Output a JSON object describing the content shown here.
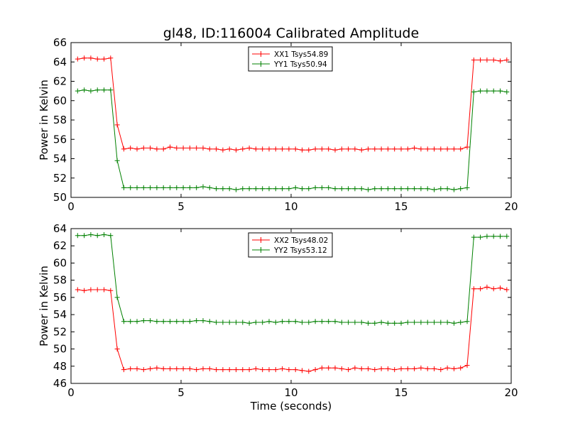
{
  "title": "gl48, ID:116004 Calibrated Amplitude",
  "chart_data": [
    {
      "type": "line",
      "title": "gl48, ID:116004 Calibrated Amplitude",
      "xlabel": "",
      "ylabel": "Power in Kelvin",
      "xlim": [
        0,
        20
      ],
      "ylim": [
        50,
        66
      ],
      "xticks": [
        0,
        5,
        10,
        15,
        20
      ],
      "yticks": [
        50,
        52,
        54,
        56,
        58,
        60,
        62,
        64,
        66
      ],
      "grid": false,
      "legend": "top-center",
      "x": [
        0.3,
        0.6,
        0.9,
        1.2,
        1.5,
        1.8,
        2.1,
        2.4,
        2.7,
        3.0,
        3.3,
        3.6,
        3.9,
        4.2,
        4.5,
        4.8,
        5.1,
        5.4,
        5.7,
        6.0,
        6.3,
        6.6,
        6.9,
        7.2,
        7.5,
        7.8,
        8.1,
        8.4,
        8.7,
        9.0,
        9.3,
        9.6,
        9.9,
        10.2,
        10.5,
        10.8,
        11.1,
        11.4,
        11.7,
        12.0,
        12.3,
        12.6,
        12.9,
        13.2,
        13.5,
        13.8,
        14.1,
        14.4,
        14.7,
        15.0,
        15.3,
        15.6,
        15.9,
        16.2,
        16.5,
        16.8,
        17.1,
        17.4,
        17.7,
        18.0,
        18.3,
        18.6,
        18.9,
        19.2,
        19.5,
        19.8
      ],
      "series": [
        {
          "name": "XX1 Tsys54.89",
          "color": "#ff0000",
          "values": [
            64.3,
            64.4,
            64.4,
            64.3,
            64.3,
            64.4,
            57.5,
            55.0,
            55.1,
            55.0,
            55.1,
            55.1,
            55.0,
            55.0,
            55.2,
            55.1,
            55.1,
            55.1,
            55.1,
            55.1,
            55.0,
            55.0,
            54.9,
            55.0,
            54.9,
            55.0,
            55.1,
            55.0,
            55.0,
            55.0,
            55.0,
            55.0,
            55.0,
            55.0,
            54.9,
            54.9,
            55.0,
            55.0,
            55.0,
            54.9,
            55.0,
            55.0,
            55.0,
            54.9,
            55.0,
            55.0,
            55.0,
            55.0,
            55.0,
            55.0,
            55.0,
            55.1,
            55.0,
            55.0,
            55.0,
            55.0,
            55.0,
            55.0,
            55.0,
            55.2,
            64.2,
            64.2,
            64.2,
            64.2,
            64.1,
            64.2
          ]
        },
        {
          "name": "YY1 Tsys50.94",
          "color": "#008000",
          "values": [
            61.0,
            61.1,
            61.0,
            61.1,
            61.1,
            61.1,
            53.8,
            51.0,
            51.0,
            51.0,
            51.0,
            51.0,
            51.0,
            51.0,
            51.0,
            51.0,
            51.0,
            51.0,
            51.0,
            51.1,
            51.0,
            50.9,
            50.9,
            50.9,
            50.8,
            50.9,
            50.9,
            50.9,
            50.9,
            50.9,
            50.9,
            50.9,
            50.9,
            51.0,
            50.9,
            50.9,
            51.0,
            51.0,
            51.0,
            50.9,
            50.9,
            50.9,
            50.9,
            50.9,
            50.8,
            50.9,
            50.9,
            50.9,
            50.9,
            50.9,
            50.9,
            50.9,
            50.9,
            50.9,
            50.8,
            50.9,
            50.9,
            50.8,
            50.9,
            51.0,
            60.9,
            61.0,
            61.0,
            61.0,
            61.0,
            60.9
          ]
        }
      ]
    },
    {
      "type": "line",
      "title": "",
      "xlabel": "Time (seconds)",
      "ylabel": "Power in Kelvin",
      "xlim": [
        0,
        20
      ],
      "ylim": [
        46,
        64
      ],
      "xticks": [
        0,
        5,
        10,
        15,
        20
      ],
      "yticks": [
        46,
        48,
        50,
        52,
        54,
        56,
        58,
        60,
        62,
        64
      ],
      "grid": false,
      "legend": "top-center",
      "x": [
        0.3,
        0.6,
        0.9,
        1.2,
        1.5,
        1.8,
        2.1,
        2.4,
        2.7,
        3.0,
        3.3,
        3.6,
        3.9,
        4.2,
        4.5,
        4.8,
        5.1,
        5.4,
        5.7,
        6.0,
        6.3,
        6.6,
        6.9,
        7.2,
        7.5,
        7.8,
        8.1,
        8.4,
        8.7,
        9.0,
        9.3,
        9.6,
        9.9,
        10.2,
        10.5,
        10.8,
        11.1,
        11.4,
        11.7,
        12.0,
        12.3,
        12.6,
        12.9,
        13.2,
        13.5,
        13.8,
        14.1,
        14.4,
        14.7,
        15.0,
        15.3,
        15.6,
        15.9,
        16.2,
        16.5,
        16.8,
        17.1,
        17.4,
        17.7,
        18.0,
        18.3,
        18.6,
        18.9,
        19.2,
        19.5,
        19.8
      ],
      "series": [
        {
          "name": "XX2 Tsys48.02",
          "color": "#ff0000",
          "values": [
            56.9,
            56.8,
            56.9,
            56.9,
            56.9,
            56.8,
            50.0,
            47.6,
            47.7,
            47.7,
            47.6,
            47.7,
            47.8,
            47.7,
            47.7,
            47.7,
            47.7,
            47.7,
            47.6,
            47.7,
            47.7,
            47.6,
            47.6,
            47.6,
            47.6,
            47.6,
            47.6,
            47.7,
            47.6,
            47.6,
            47.6,
            47.7,
            47.6,
            47.6,
            47.5,
            47.4,
            47.6,
            47.8,
            47.8,
            47.8,
            47.7,
            47.6,
            47.8,
            47.7,
            47.7,
            47.6,
            47.7,
            47.7,
            47.6,
            47.7,
            47.7,
            47.7,
            47.8,
            47.7,
            47.7,
            47.6,
            47.8,
            47.7,
            47.8,
            48.1,
            57.0,
            57.0,
            57.2,
            57.0,
            57.1,
            56.9
          ]
        },
        {
          "name": "YY2 Tsys53.12",
          "color": "#008000",
          "values": [
            63.2,
            63.2,
            63.3,
            63.2,
            63.3,
            63.2,
            56.0,
            53.2,
            53.2,
            53.2,
            53.3,
            53.3,
            53.2,
            53.2,
            53.2,
            53.2,
            53.2,
            53.2,
            53.3,
            53.3,
            53.2,
            53.1,
            53.1,
            53.1,
            53.1,
            53.1,
            53.0,
            53.1,
            53.1,
            53.2,
            53.1,
            53.2,
            53.2,
            53.2,
            53.1,
            53.1,
            53.2,
            53.2,
            53.2,
            53.2,
            53.1,
            53.1,
            53.1,
            53.1,
            53.0,
            53.0,
            53.1,
            53.0,
            53.0,
            53.0,
            53.1,
            53.1,
            53.1,
            53.1,
            53.1,
            53.1,
            53.1,
            53.0,
            53.1,
            53.2,
            63.0,
            63.0,
            63.1,
            63.1,
            63.1,
            63.1
          ]
        }
      ]
    }
  ]
}
